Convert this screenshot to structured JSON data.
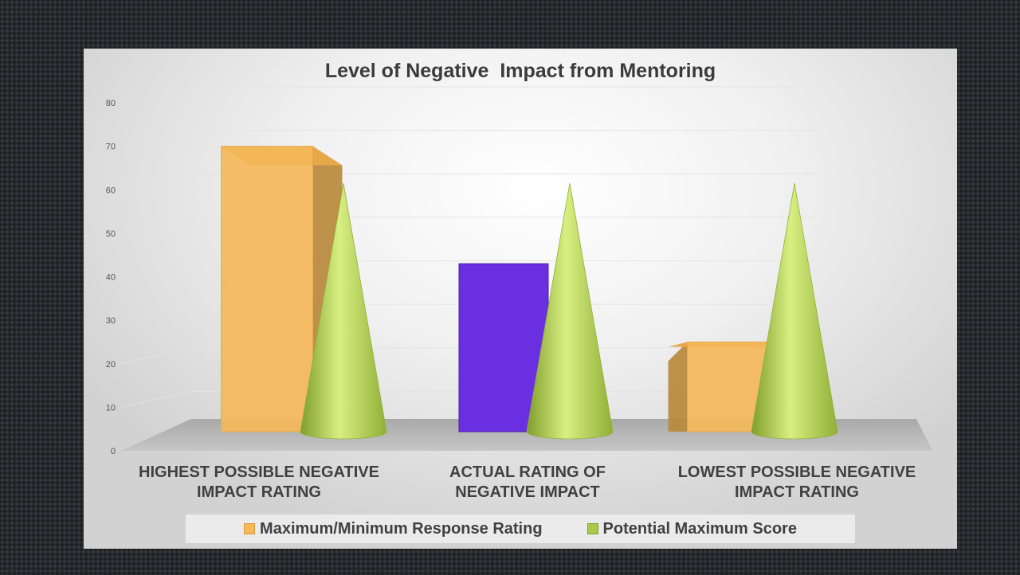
{
  "chart_data": {
    "type": "bar",
    "title": "Level of Negative  Impact from Mentoring",
    "categories": [
      "HIGHEST POSSIBLE NEGATIVE IMPACT RATING",
      "ACTUAL RATING OF NEGATIVE IMPACT",
      "LOWEST POSSIBLE  NEGATIVE IMPACT RATING"
    ],
    "category_lines": [
      [
        "HIGHEST POSSIBLE NEGATIVE",
        "IMPACT RATING"
      ],
      [
        "ACTUAL RATING OF",
        "NEGATIVE IMPACT"
      ],
      [
        "LOWEST POSSIBLE  NEGATIVE",
        "IMPACT RATING"
      ]
    ],
    "series": [
      {
        "name": "Maximum/Minimum Response Rating",
        "values": [
          70,
          43,
          25
        ],
        "shape": "box",
        "color": "#f5b95a"
      },
      {
        "name": "Potential Maximum Score",
        "values": [
          67,
          67,
          67
        ],
        "shape": "cone",
        "color": "#a9c94a"
      }
    ],
    "highlight_color": "#6a2fe0",
    "ylim": [
      0,
      80
    ],
    "yticks": [
      0,
      10,
      20,
      30,
      40,
      50,
      60,
      70,
      80
    ],
    "grid": true,
    "legend_position": "bottom",
    "style": "3d"
  }
}
